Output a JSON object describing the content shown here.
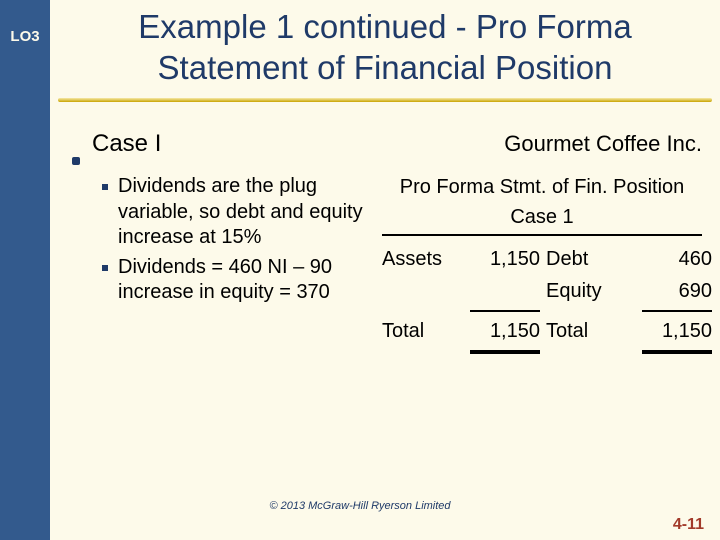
{
  "colors": {
    "sidebar": "#335a8d",
    "background": "#fdfaea",
    "title_color": "#1f3a68",
    "accent_rule": "#c9a400",
    "slidenum_color": "#a23a2a"
  },
  "lo_badge": "LO3",
  "title_line1": "Example 1 continued - Pro Forma",
  "title_line2": "Statement of Financial Position",
  "case_label": "Case I",
  "company": "Gourmet Coffee Inc.",
  "bullets": [
    "Dividends are the plug variable, so debt and equity increase at 15%",
    "Dividends = 460 NI – 90 increase in equity = 370"
  ],
  "subtitle_line1": "Pro Forma Stmt. of Fin. Position",
  "subtitle_line2": "Case 1",
  "balance_sheet": {
    "rows": [
      {
        "left_label": "Assets",
        "left_value": "1,150",
        "right_label": "Debt",
        "right_value": "460"
      },
      {
        "left_label": "",
        "left_value": "",
        "right_label": "Equity",
        "right_value": "690"
      },
      {
        "left_label": "Total",
        "left_value": "1,150",
        "right_label": "Total",
        "right_value": "1,150"
      }
    ]
  },
  "copyright": "© 2013 McGraw-Hill Ryerson Limited",
  "slide_number": "4-11"
}
